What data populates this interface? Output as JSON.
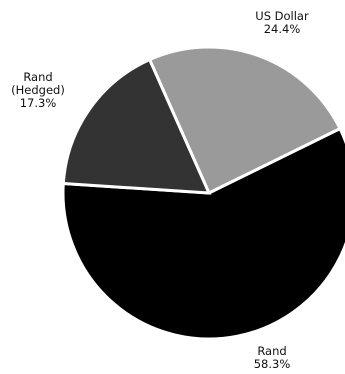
{
  "chart_data": {
    "type": "pie",
    "title": "",
    "slices": [
      {
        "label": "US Dollar",
        "label_lines": [
          "US Dollar"
        ],
        "value": 24.4,
        "value_text": "24.4%",
        "color": "#9a9a9a"
      },
      {
        "label": "Rand",
        "label_lines": [
          "Rand"
        ],
        "value": 58.3,
        "value_text": "58.3%",
        "color": "#000000"
      },
      {
        "label": "Rand (Hedged)",
        "label_lines": [
          "Rand",
          "(Hedged)"
        ],
        "value": 17.3,
        "value_text": "17.3%",
        "color": "#333333"
      }
    ],
    "slice_border_color": "#ffffff",
    "legend": "none"
  }
}
